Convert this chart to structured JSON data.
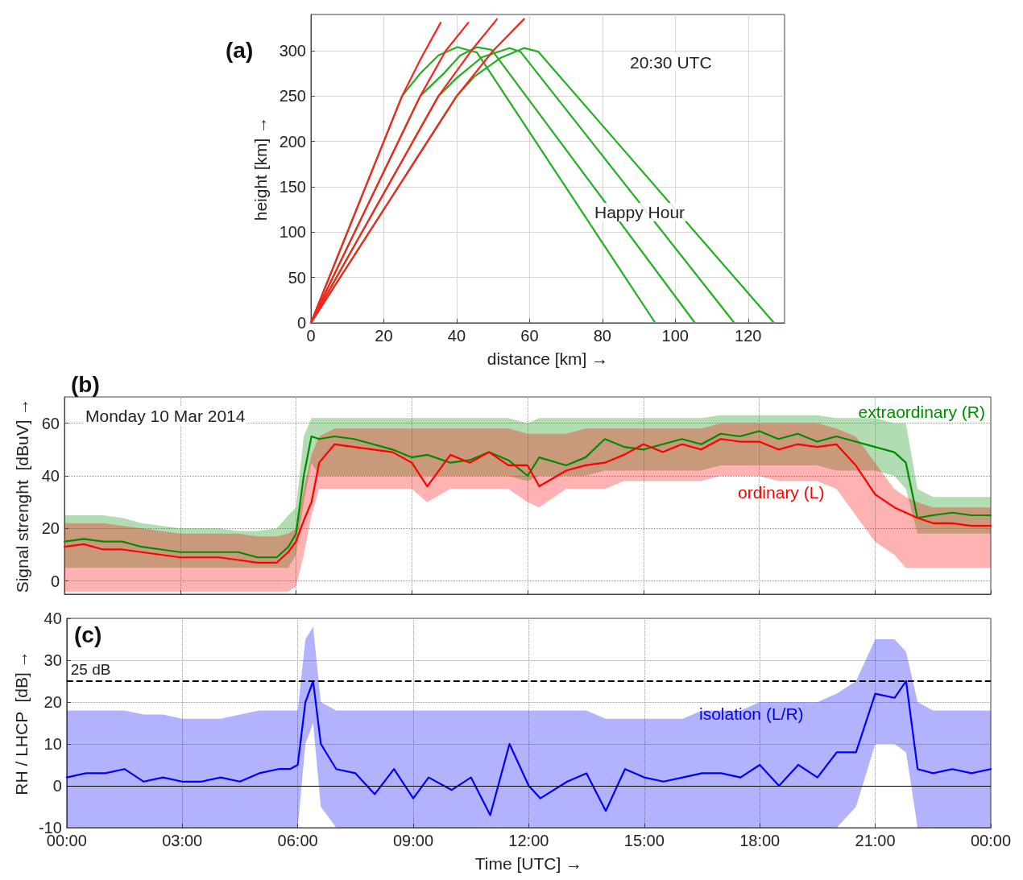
{
  "chart_data": [
    {
      "type": "line",
      "title": "(a)",
      "xlabel": "distance [km] →",
      "ylabel": "height [km] →",
      "annotations": [
        "20:30 UTC",
        "Happy Hour"
      ],
      "xlim": [
        0,
        130
      ],
      "ylim": [
        0,
        340
      ],
      "xticks": [
        0,
        20,
        40,
        60,
        80,
        100,
        120
      ],
      "yticks": [
        0,
        50,
        100,
        150,
        200,
        250,
        300
      ],
      "grid": true,
      "series": [
        {
          "color": "#20b020",
          "x": [
            0,
            25,
            30,
            35,
            40.2,
            45.6,
            94.5
          ],
          "values": [
            0,
            250,
            275,
            295,
            304,
            298,
            0
          ]
        },
        {
          "color": "#20b020",
          "x": [
            0,
            30,
            36.7,
            41,
            45.6,
            49.6,
            105.4
          ],
          "values": [
            0,
            250,
            276,
            295,
            304,
            301,
            0
          ]
        },
        {
          "color": "#20b020",
          "x": [
            0,
            35,
            40,
            47,
            54.5,
            57.5,
            116.2
          ],
          "values": [
            0,
            250,
            270,
            293,
            303,
            299,
            0
          ]
        },
        {
          "color": "#20b020",
          "x": [
            0,
            40,
            45,
            52,
            58.5,
            62.4,
            127.1
          ],
          "values": [
            0,
            250,
            272,
            292,
            303,
            299,
            0
          ]
        },
        {
          "color": "#ff2020",
          "x": [
            0,
            25,
            30,
            35.6
          ],
          "values": [
            0,
            250,
            290,
            331
          ]
        },
        {
          "color": "#ff2020",
          "x": [
            0,
            30,
            37,
            43.2
          ],
          "values": [
            0,
            250,
            300,
            331
          ]
        },
        {
          "color": "#ff2020",
          "x": [
            0,
            35,
            44,
            51.1
          ],
          "values": [
            0,
            250,
            300,
            335
          ]
        },
        {
          "color": "#ff2020",
          "x": [
            0,
            40,
            50,
            58.5
          ],
          "values": [
            0,
            250,
            300,
            335
          ]
        }
      ]
    },
    {
      "type": "line",
      "title": "(b)",
      "ylabel": "Signal strenght  [dBuV] →",
      "annotations": [
        "Monday 10 Mar 2014"
      ],
      "xlim": [
        0,
        24
      ],
      "ylim": [
        -5,
        70
      ],
      "yticks": [
        0,
        20,
        40,
        60
      ],
      "grid": true,
      "tick_labels": "y",
      "xticks": [
        {
          "value": 0,
          "label": null
        },
        {
          "value": 3,
          "label": null
        },
        {
          "value": 6,
          "label": null
        },
        {
          "value": 9,
          "label": null
        },
        {
          "value": 12,
          "label": null
        },
        {
          "value": 15,
          "label": null
        },
        {
          "value": 18,
          "label": null
        },
        {
          "value": 21,
          "label": null
        },
        {
          "value": 24,
          "label": null
        }
      ],
      "x": [
        0,
        0.5,
        1,
        1.5,
        2,
        2.5,
        3,
        3.5,
        4,
        4.5,
        5,
        5.5,
        5.8,
        6.0,
        6.2,
        6.4,
        6.6,
        7,
        7.5,
        8,
        8.5,
        9,
        9.4,
        10,
        10.5,
        11,
        11.5,
        12,
        12.3,
        13,
        13.5,
        14,
        14.5,
        15,
        15.5,
        16,
        16.5,
        17,
        17.5,
        18,
        18.5,
        19,
        19.5,
        20,
        20.5,
        21,
        21.5,
        21.8,
        22.1,
        22.5,
        23,
        23.5,
        24
      ],
      "series": [
        {
          "name": "extraordinary (R)",
          "color": "#008c00",
          "values": [
            15,
            16,
            15,
            15,
            13,
            12,
            11,
            11,
            11,
            11,
            9,
            9,
            13,
            18,
            40,
            55,
            54,
            55,
            54,
            52,
            50,
            47,
            48,
            45,
            46,
            49,
            46,
            40,
            47,
            44,
            47,
            54,
            51,
            50,
            52,
            54,
            52,
            56,
            55,
            57,
            54,
            56,
            53,
            55,
            53,
            51,
            49,
            45,
            24,
            25,
            26,
            25,
            25
          ],
          "lower": [
            5,
            5,
            5,
            5,
            5,
            5,
            5,
            5,
            5,
            5,
            5,
            5,
            5,
            10,
            30,
            45,
            40,
            40,
            40,
            40,
            40,
            40,
            40,
            40,
            40,
            40,
            40,
            38,
            40,
            40,
            40,
            42,
            42,
            42,
            42,
            42,
            42,
            44,
            44,
            44,
            44,
            44,
            44,
            42,
            42,
            42,
            40,
            35,
            18,
            18,
            18,
            18,
            18
          ],
          "upper": [
            25,
            25,
            25,
            24,
            22,
            21,
            20,
            20,
            20,
            19,
            19,
            20,
            25,
            28,
            55,
            62,
            62,
            62,
            62,
            62,
            62,
            62,
            62,
            62,
            62,
            62,
            62,
            60,
            62,
            62,
            62,
            62,
            62,
            62,
            62,
            62,
            62,
            63,
            63,
            63,
            63,
            63,
            63,
            62,
            62,
            62,
            60,
            60,
            35,
            32,
            32,
            32,
            32
          ]
        },
        {
          "name": "ordinary (L)",
          "color": "#ff0000",
          "values": [
            13,
            14,
            12,
            12,
            11,
            10,
            9,
            9,
            9,
            8,
            7,
            7,
            11,
            15,
            23,
            30,
            45,
            52,
            51,
            50,
            49,
            45,
            36,
            48,
            45,
            49,
            44,
            44,
            36,
            42,
            44,
            45,
            48,
            52,
            49,
            52,
            50,
            54,
            53,
            53,
            50,
            52,
            51,
            52,
            44,
            33,
            28,
            26,
            24,
            22,
            22,
            21,
            21
          ],
          "lower": [
            -4,
            -4,
            -4,
            -4,
            -4,
            -4,
            -4,
            -4,
            -4,
            -4,
            -4,
            -4,
            -4,
            -2,
            10,
            25,
            35,
            35,
            35,
            35,
            35,
            35,
            30,
            35,
            35,
            35,
            35,
            30,
            28,
            35,
            35,
            35,
            38,
            38,
            38,
            38,
            38,
            40,
            40,
            40,
            38,
            38,
            38,
            35,
            25,
            15,
            10,
            5,
            5,
            5,
            5,
            5,
            5
          ],
          "upper": [
            22,
            22,
            22,
            21,
            20,
            19,
            18,
            18,
            18,
            18,
            17,
            17,
            18,
            20,
            35,
            48,
            55,
            58,
            58,
            58,
            58,
            58,
            58,
            58,
            58,
            58,
            58,
            56,
            56,
            56,
            58,
            58,
            58,
            58,
            58,
            58,
            58,
            60,
            60,
            60,
            60,
            60,
            60,
            58,
            55,
            45,
            35,
            32,
            30,
            28,
            28,
            28,
            28
          ]
        }
      ]
    },
    {
      "type": "line",
      "title": "(c)",
      "xlabel": "Time [UTC] →",
      "ylabel": "RH / LHCP  [dB] →",
      "xlim": [
        0,
        24
      ],
      "ylim": [
        -10,
        40
      ],
      "yticks": [
        -10,
        0,
        10,
        20,
        30,
        40
      ],
      "grid": true,
      "xticks": [
        {
          "value": 0,
          "label": "00:00"
        },
        {
          "value": 3,
          "label": "03:00"
        },
        {
          "value": 6,
          "label": "06:00"
        },
        {
          "value": 9,
          "label": "09:00"
        },
        {
          "value": 12,
          "label": "12:00"
        },
        {
          "value": 15,
          "label": "15:00"
        },
        {
          "value": 18,
          "label": "18:00"
        },
        {
          "value": 21,
          "label": "21:00"
        },
        {
          "value": 24,
          "label": "00:00"
        }
      ],
      "ref_lines": [
        {
          "axis": "y",
          "value": 25,
          "label": "25 dB",
          "color": "#000000",
          "line_style": "dashed"
        },
        {
          "axis": "y",
          "value": 0,
          "label": null,
          "color": "#000000",
          "line_style": "solid"
        }
      ],
      "x": [
        0,
        0.5,
        1,
        1.5,
        2,
        2.5,
        3,
        3.5,
        4,
        4.5,
        5,
        5.5,
        5.8,
        6.0,
        6.2,
        6.4,
        6.6,
        7,
        7.5,
        8,
        8.5,
        9,
        9.4,
        10,
        10.5,
        11,
        11.5,
        12,
        12.3,
        13,
        13.5,
        14,
        14.5,
        15,
        15.5,
        16,
        16.5,
        17,
        17.5,
        18,
        18.5,
        19,
        19.5,
        20,
        20.5,
        21,
        21.5,
        21.8,
        22.1,
        22.5,
        23,
        23.5,
        24
      ],
      "series": [
        {
          "name": "isolation (L/R)",
          "color": "#0000ff",
          "values": [
            2,
            3,
            3,
            4,
            1,
            2,
            1,
            1,
            2,
            1,
            3,
            4,
            4,
            5,
            20,
            25,
            10,
            4,
            3,
            -2,
            4,
            -3,
            2,
            -1,
            2,
            -7,
            10,
            0,
            -3,
            1,
            3,
            -6,
            4,
            2,
            1,
            2,
            3,
            3,
            2,
            5,
            0,
            5,
            2,
            8,
            8,
            22,
            21,
            25,
            4,
            3,
            4,
            3,
            4
          ],
          "lower": [
            -10,
            -10,
            -10,
            -10,
            -10,
            -10,
            -10,
            -10,
            -10,
            -10,
            -10,
            -10,
            -10,
            -10,
            10,
            15,
            -5,
            -10,
            -10,
            -10,
            -10,
            -10,
            -10,
            -10,
            -10,
            -10,
            -10,
            -10,
            -10,
            -10,
            -10,
            -10,
            -10,
            -10,
            -10,
            -10,
            -10,
            -10,
            -10,
            -10,
            -10,
            -10,
            -10,
            -10,
            -5,
            10,
            10,
            8,
            -10,
            -10,
            -10,
            -10,
            -10
          ],
          "upper": [
            18,
            18,
            18,
            18,
            17,
            17,
            16,
            16,
            16,
            17,
            18,
            18,
            18,
            18,
            35,
            38,
            20,
            18,
            18,
            18,
            18,
            18,
            18,
            18,
            18,
            18,
            18,
            18,
            18,
            18,
            18,
            16,
            16,
            16,
            16,
            16,
            18,
            18,
            18,
            20,
            20,
            20,
            20,
            22,
            25,
            35,
            35,
            32,
            20,
            18,
            18,
            18,
            18
          ]
        }
      ]
    }
  ]
}
